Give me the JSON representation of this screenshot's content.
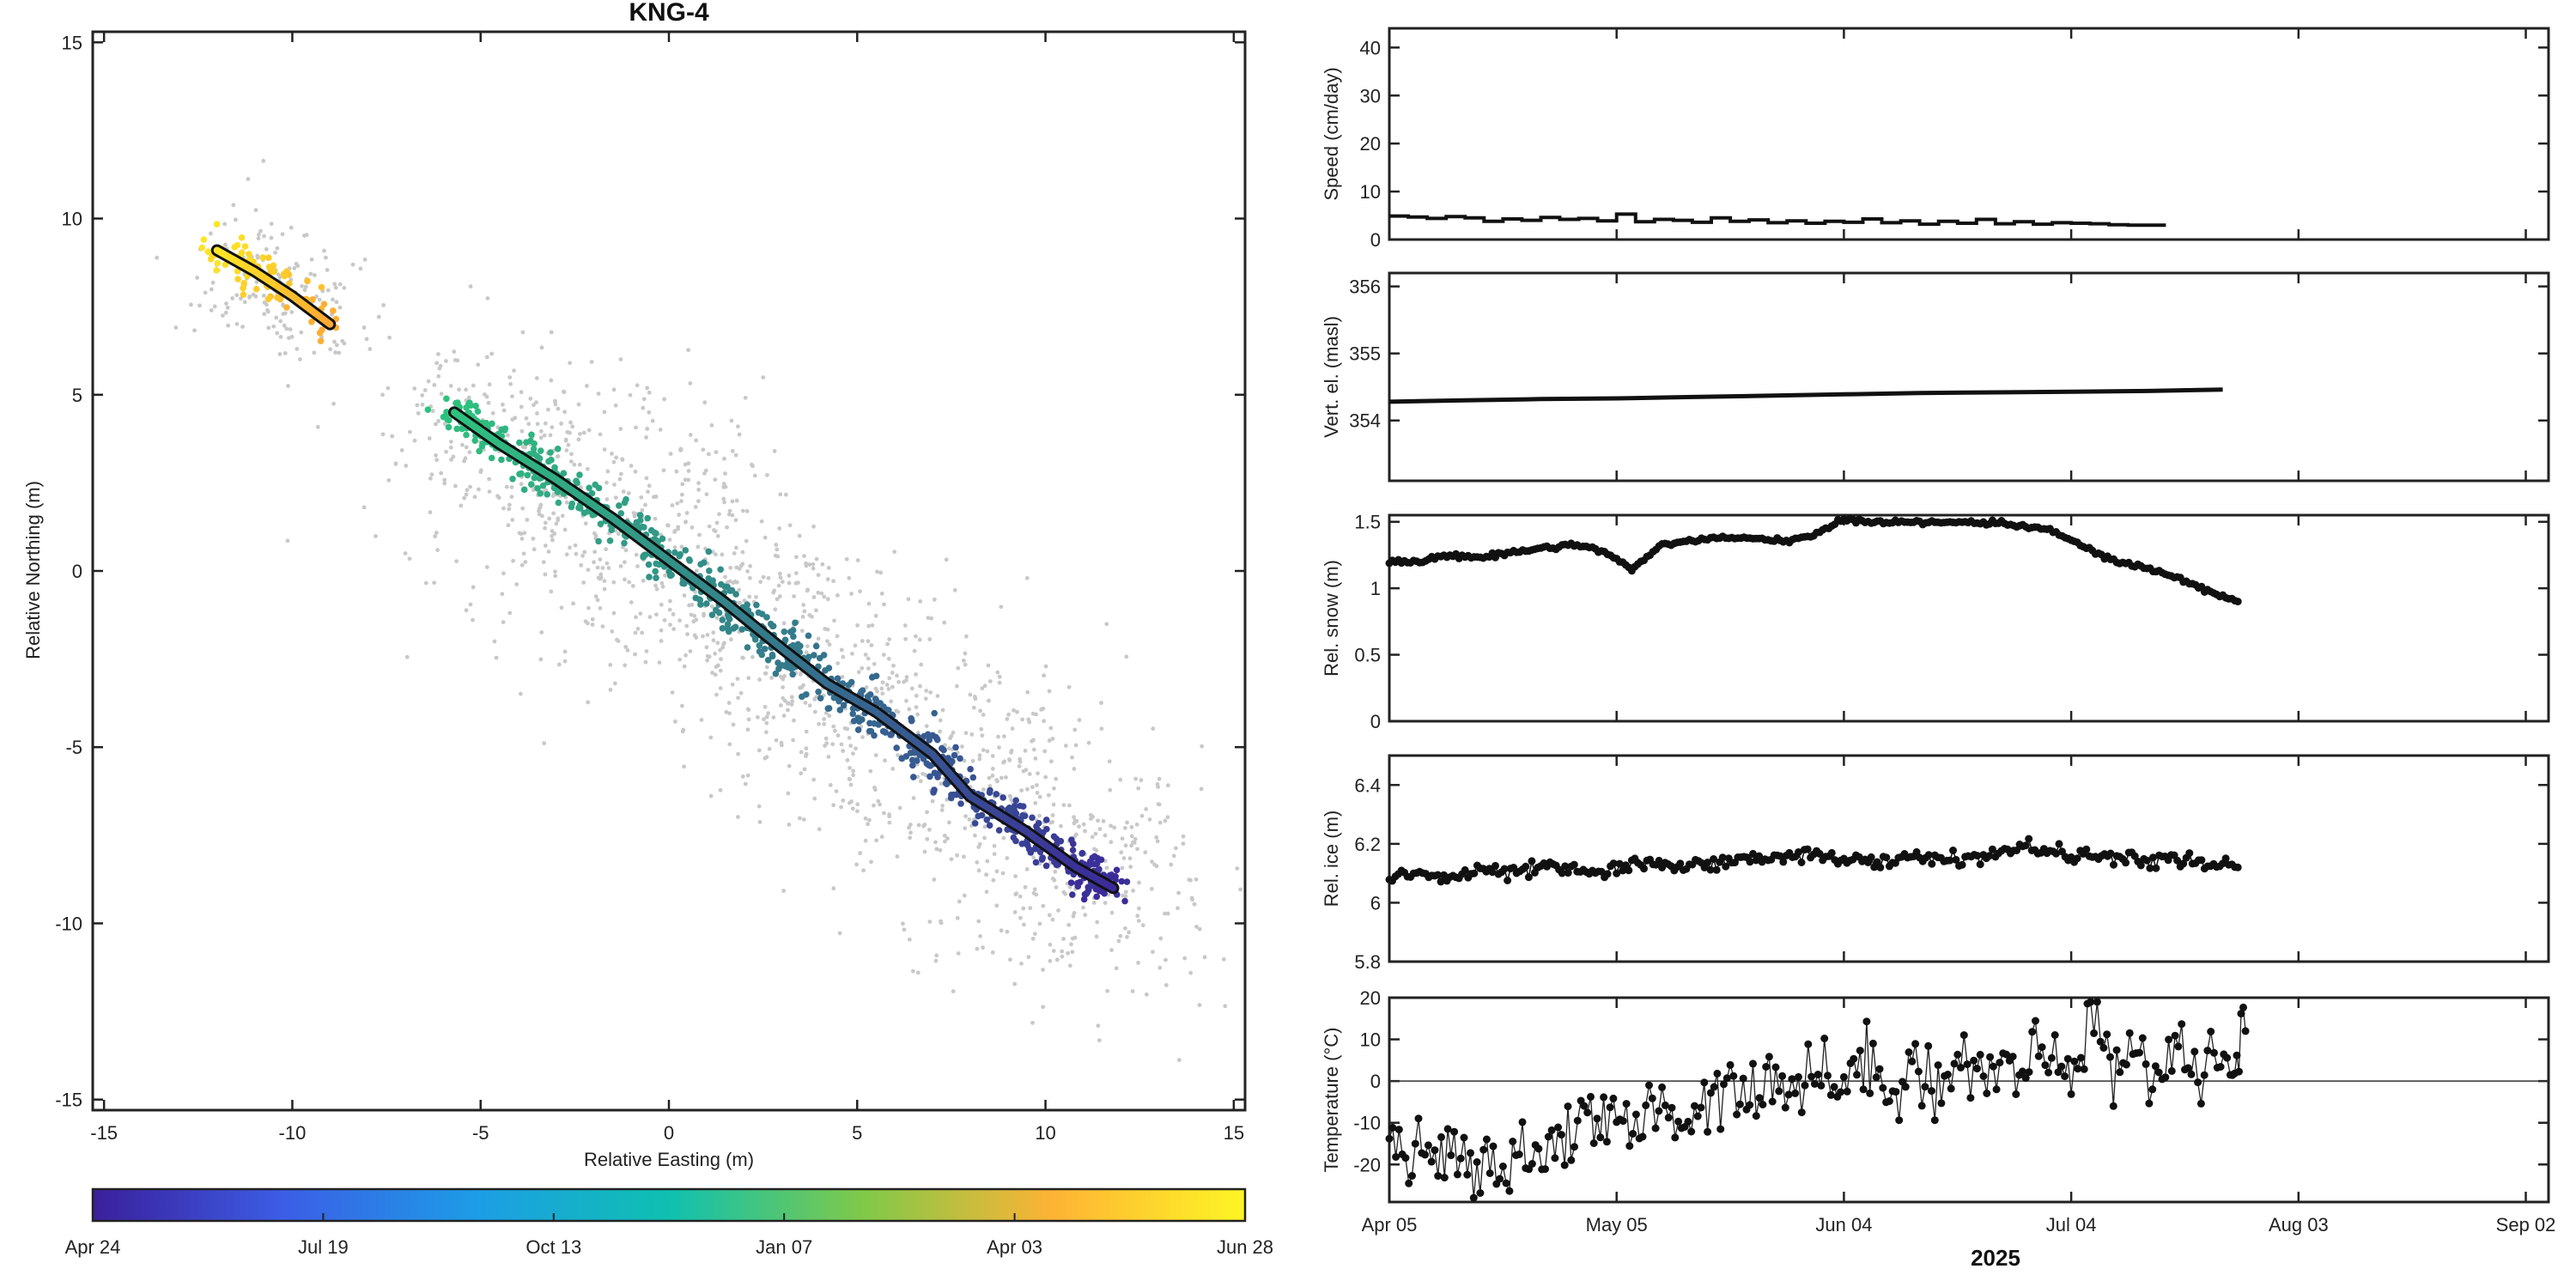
{
  "chart_data": [
    {
      "id": "track",
      "type": "scatter",
      "title": "KNG-4",
      "xlabel": "Relative Easting (m)",
      "ylabel": "Relative Northing (m)",
      "xlim": [
        -15.3,
        15.3
      ],
      "ylim": [
        -15.3,
        15.3
      ],
      "xticks": [
        -15,
        -10,
        -5,
        0,
        5,
        10,
        15
      ],
      "yticks": [
        -15,
        -10,
        -5,
        0,
        5,
        10,
        15
      ],
      "grid": false,
      "background_scatter_color": "#c8c8c8",
      "track_segments": [
        {
          "name": "",
          "points": [
            [
              -12.0,
              9.1
            ],
            [
              -11.0,
              8.5
            ],
            [
              -10.0,
              7.8
            ],
            [
              -9.0,
              7.0
            ]
          ],
          "color_range": [
            "#fde725",
            "#fca832"
          ]
        },
        {
          "name": "",
          "points": [
            [
              -5.7,
              4.5
            ],
            [
              -4.5,
              3.6
            ],
            [
              -3.0,
              2.6
            ],
            [
              -1.5,
              1.5
            ],
            [
              0.0,
              0.3
            ],
            [
              1.5,
              -0.9
            ],
            [
              3.0,
              -2.2
            ],
            [
              4.2,
              -3.2
            ],
            [
              5.5,
              -4.0
            ],
            [
              7.0,
              -5.2
            ],
            [
              8.0,
              -6.4
            ],
            [
              9.5,
              -7.4
            ],
            [
              10.8,
              -8.4
            ],
            [
              11.8,
              -9.0
            ]
          ],
          "color_range": [
            "#2ec27e",
            "#3b2a9a"
          ]
        }
      ]
    },
    {
      "id": "colorbar",
      "type": "colorbar",
      "tick_labels": [
        "Apr 24",
        "Jul 19",
        "Oct 13",
        "Jan 07",
        "Apr 03",
        "Jun 28"
      ],
      "colors": [
        "#3b1f9b",
        "#3c5ee6",
        "#1d9de6",
        "#0fc0b0",
        "#7fc94a",
        "#fdb335",
        "#fdf525"
      ]
    },
    {
      "id": "speed",
      "type": "line",
      "ylabel": "Speed (cm/day)",
      "ylim": [
        0,
        44
      ],
      "yticks": [
        0,
        10,
        20,
        30,
        40
      ],
      "start_day": 0,
      "step_days": 2.5,
      "values": [
        4.9,
        4.7,
        4.4,
        4.8,
        4.5,
        3.8,
        4.3,
        4.0,
        4.6,
        4.2,
        4.4,
        3.9,
        5.3,
        3.7,
        4.2,
        4.0,
        3.6,
        4.5,
        3.8,
        4.1,
        3.5,
        3.9,
        3.4,
        3.8,
        3.6,
        4.3,
        3.5,
        3.9,
        3.2,
        3.8,
        3.4,
        4.2,
        3.3,
        3.7,
        3.2,
        3.5,
        3.4,
        3.3,
        3.1,
        3.0,
        3.0
      ]
    },
    {
      "id": "vertel",
      "type": "line",
      "ylabel": "Vert. el. (masl)",
      "ylim": [
        353.1,
        356.2
      ],
      "yticks": [
        354,
        355,
        356
      ],
      "x_days": [
        0,
        10,
        20,
        30,
        40,
        50,
        60,
        70,
        80,
        90,
        100,
        110
      ],
      "values": [
        354.28,
        354.3,
        354.32,
        354.33,
        354.35,
        354.37,
        354.39,
        354.41,
        354.42,
        354.43,
        354.44,
        354.46
      ]
    },
    {
      "id": "snow",
      "type": "line",
      "ylabel": "Rel. snow (m)",
      "ylim": [
        0,
        1.55
      ],
      "yticks": [
        0,
        0.5,
        1,
        1.5
      ],
      "ytick_labels": [
        "0",
        "0.5",
        "1",
        "1.5"
      ],
      "x_days": [
        0,
        4,
        8,
        12,
        16,
        20,
        24,
        28,
        32,
        36,
        40,
        44,
        48,
        52,
        56,
        60,
        64,
        68,
        72,
        76,
        80,
        84,
        88,
        92,
        96,
        100,
        104,
        108,
        112
      ],
      "values": [
        1.2,
        1.2,
        1.25,
        1.23,
        1.27,
        1.3,
        1.33,
        1.29,
        1.14,
        1.33,
        1.36,
        1.38,
        1.37,
        1.36,
        1.39,
        1.52,
        1.5,
        1.5,
        1.49,
        1.5,
        1.49,
        1.47,
        1.42,
        1.3,
        1.2,
        1.15,
        1.08,
        0.98,
        0.9
      ]
    },
    {
      "id": "ice",
      "type": "line",
      "ylabel": "Rel. ice  (m)",
      "ylim": [
        5.8,
        6.5
      ],
      "yticks": [
        5.8,
        6,
        6.2,
        6.4
      ],
      "ytick_labels": [
        "5.8",
        "6",
        "6.2",
        "6.4"
      ],
      "x_days": [
        0,
        4,
        8,
        12,
        16,
        20,
        24,
        28,
        32,
        36,
        40,
        44,
        48,
        52,
        56,
        60,
        64,
        68,
        72,
        76,
        80,
        84,
        88,
        92,
        96,
        100,
        104,
        108,
        112
      ],
      "values": [
        6.09,
        6.1,
        6.08,
        6.11,
        6.1,
        6.12,
        6.11,
        6.1,
        6.13,
        6.12,
        6.14,
        6.13,
        6.15,
        6.16,
        6.17,
        6.15,
        6.13,
        6.15,
        6.16,
        6.14,
        6.17,
        6.19,
        6.17,
        6.16,
        6.15,
        6.14,
        6.15,
        6.13,
        6.12
      ]
    },
    {
      "id": "temp",
      "type": "scatter",
      "ylabel": "Temperature (°C)",
      "ylim": [
        -29,
        20
      ],
      "yticks": [
        -20,
        -10,
        0,
        10,
        20
      ],
      "zero_line": true,
      "x_days": [
        0,
        3,
        6,
        9,
        12,
        15,
        18,
        21,
        24,
        27,
        30,
        33,
        36,
        39,
        42,
        45,
        48,
        51,
        54,
        57,
        60,
        63,
        66,
        69,
        72,
        75,
        78,
        81,
        84,
        87,
        90,
        93,
        96,
        99,
        102,
        105,
        108,
        111,
        113
      ],
      "values": [
        -16,
        -20,
        -14,
        -23,
        -17,
        -21,
        -15,
        -18,
        -10,
        -13,
        -8,
        -12,
        -5,
        -9,
        -4,
        1,
        -3,
        2,
        -2,
        3,
        -1,
        4,
        0,
        5,
        -2,
        6,
        1,
        4,
        2,
        6,
        3,
        15,
        2,
        5,
        3,
        8,
        4,
        6,
        12
      ]
    },
    {
      "id": "time_axis",
      "type": "axis",
      "tick_labels": [
        "Apr 05",
        "May 05",
        "Jun 04",
        "Jul 04",
        "Aug 03",
        "Sep 02"
      ],
      "tick_days": [
        0,
        30,
        60,
        90,
        120,
        150
      ],
      "xlim_days": [
        0,
        153
      ],
      "xlabel": "2025"
    }
  ]
}
